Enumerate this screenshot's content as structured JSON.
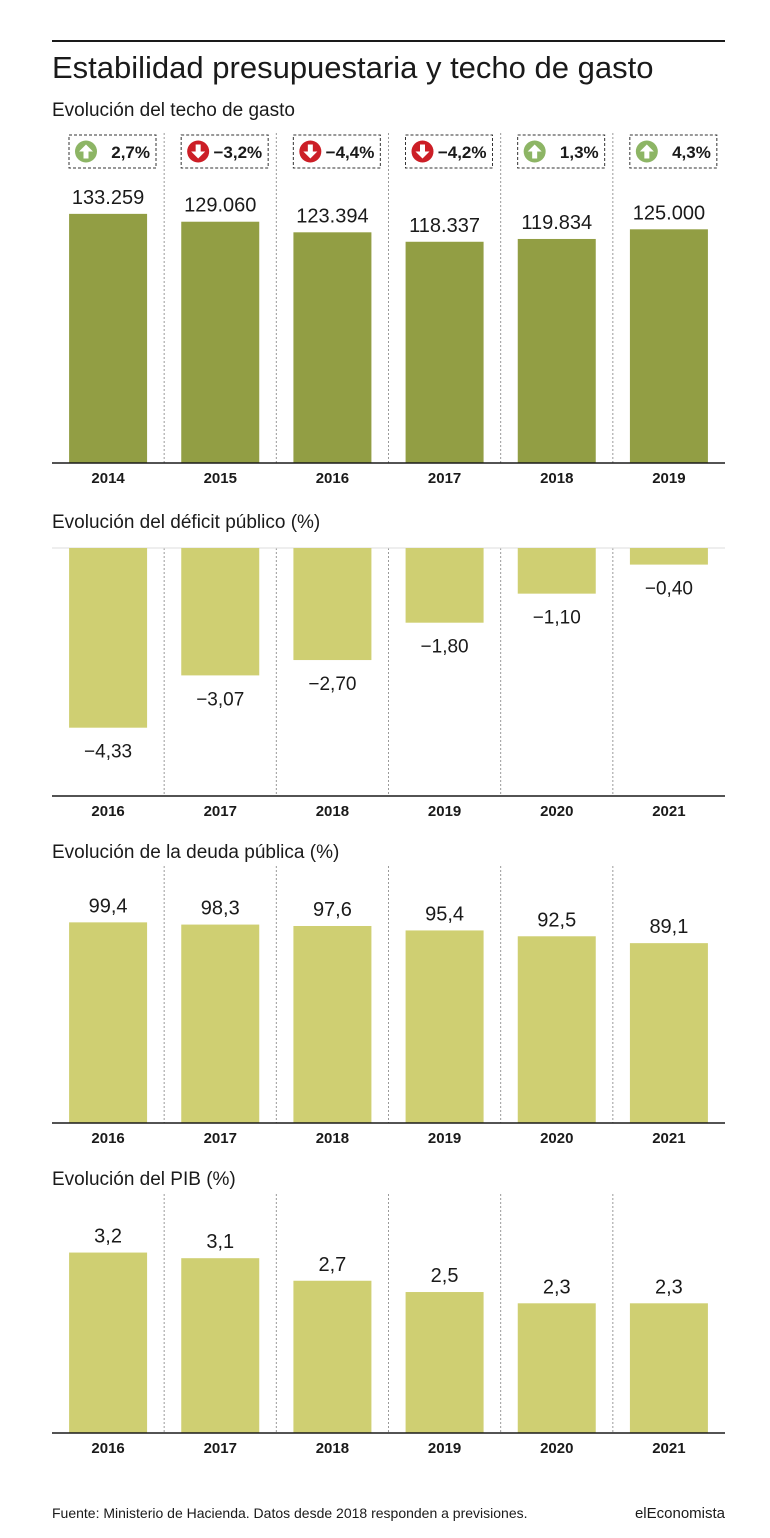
{
  "title": "Estabilidad presupuestaria y techo de gasto",
  "source": "Fuente: Ministerio de Hacienda. Datos desde 2018 responden a previsiones.",
  "brand": "elEconomista",
  "colors": {
    "dark_bar": "#929e44",
    "light_bar": "#cfcf72",
    "up_arrow": "#8db565",
    "down_arrow": "#cc1e26"
  },
  "chart_data": [
    {
      "id": "techo",
      "type": "bar",
      "title": "Evolución del techo de gasto",
      "categories": [
        "2014",
        "2015",
        "2016",
        "2017",
        "2018",
        "2019"
      ],
      "values": [
        133259,
        129060,
        123394,
        118337,
        119834,
        125000
      ],
      "labels": [
        "133.259",
        "129.060",
        "123.394",
        "118.337",
        "119.834",
        "125.000"
      ],
      "changes": [
        {
          "label": "2,7%",
          "direction": "up"
        },
        {
          "label": "−3,2%",
          "direction": "down"
        },
        {
          "label": "−4,4%",
          "direction": "down"
        },
        {
          "label": "−4,2%",
          "direction": "down"
        },
        {
          "label": "1,3%",
          "direction": "up"
        },
        {
          "label": "4,3%",
          "direction": "up"
        }
      ],
      "ylim": [
        0,
        138000
      ]
    },
    {
      "id": "deficit",
      "type": "bar",
      "title": "Evolución del déficit público (%)",
      "categories": [
        "2016",
        "2017",
        "2018",
        "2019",
        "2020",
        "2021"
      ],
      "values": [
        -4.33,
        -3.07,
        -2.7,
        -1.8,
        -1.1,
        -0.4
      ],
      "labels": [
        "−4,33",
        "−3,07",
        "−2,70",
        "−1,80",
        "−1,10",
        "−0,40"
      ],
      "ylim": [
        -6,
        0
      ]
    },
    {
      "id": "deuda",
      "type": "bar",
      "title": "Evolución de la deuda pública (%)",
      "categories": [
        "2016",
        "2017",
        "2018",
        "2019",
        "2020",
        "2021"
      ],
      "values": [
        99.4,
        98.3,
        97.6,
        95.4,
        92.5,
        89.1
      ],
      "labels": [
        "99,4",
        "98,3",
        "97,6",
        "95,4",
        "92,5",
        "89,1"
      ],
      "ylim": [
        0,
        108
      ]
    },
    {
      "id": "pib",
      "type": "bar",
      "title": "Evolución del PIB (%)",
      "categories": [
        "2016",
        "2017",
        "2018",
        "2019",
        "2020",
        "2021"
      ],
      "values": [
        3.2,
        3.1,
        2.7,
        2.5,
        2.3,
        2.3
      ],
      "labels": [
        "3,2",
        "3,1",
        "2,7",
        "2,5",
        "2,3",
        "2,3"
      ],
      "ylim": [
        0,
        3.6
      ]
    }
  ]
}
